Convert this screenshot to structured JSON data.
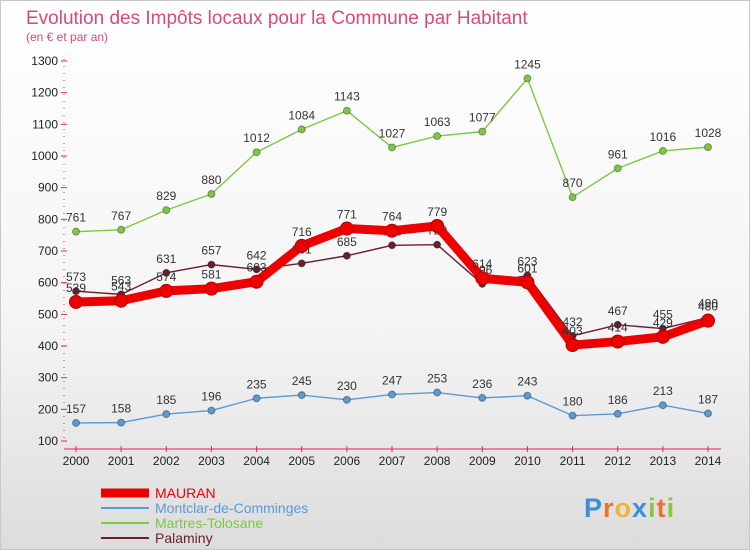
{
  "chart_data": {
    "type": "line",
    "title": "Evolution des Impôts locaux pour la Commune par Habitant",
    "subtitle": "(en € et par an)",
    "xlabel": "",
    "ylabel": "",
    "x": [
      "2000",
      "2001",
      "2002",
      "2003",
      "2004",
      "2005",
      "2006",
      "2007",
      "2008",
      "2009",
      "2010",
      "2011",
      "2012",
      "2013",
      "2014"
    ],
    "ylim": [
      100,
      1300
    ],
    "yticks": [
      100,
      200,
      300,
      400,
      500,
      600,
      700,
      800,
      900,
      1000,
      1100,
      1200,
      1300
    ],
    "grid": false,
    "legend_position": "bottom-left",
    "series": [
      {
        "name": "Martres-Tolosane",
        "color": "#7dc843",
        "values": [
          761,
          767,
          829,
          880,
          1012,
          1084,
          1143,
          1027,
          1063,
          1077,
          1245,
          870,
          961,
          1016,
          1028
        ]
      },
      {
        "name": "Montclar-de-Comminges",
        "color": "#5b9bd5",
        "values": [
          157,
          158,
          185,
          196,
          235,
          245,
          230,
          247,
          253,
          236,
          243,
          180,
          186,
          213,
          187
        ]
      },
      {
        "name": "Palaminy",
        "color": "#6b1f2a",
        "values": [
          573,
          563,
          631,
          657,
          642,
          661,
          685,
          718,
          720,
          596,
          623,
          432,
          467,
          455,
          490
        ]
      },
      {
        "name": "MAURAN",
        "color": "#ee0000",
        "values": [
          539,
          543,
          574,
          581,
          603,
          716,
          771,
          764,
          779,
          614,
          601,
          403,
          414,
          429,
          480
        ]
      }
    ],
    "legend_order": [
      "MAURAN",
      "Montclar-de-Comminges",
      "Martres-Tolosane",
      "Palaminy"
    ]
  },
  "logo": {
    "text": "Proxiti",
    "letters": [
      "P",
      "r",
      "o",
      "x",
      "i",
      "t",
      "i"
    ],
    "colors": [
      "#3d8fd6",
      "#e8732a",
      "#f2b33d",
      "#3d8fd6",
      "#8cc63f",
      "#e8732a",
      "#8cc63f"
    ]
  }
}
